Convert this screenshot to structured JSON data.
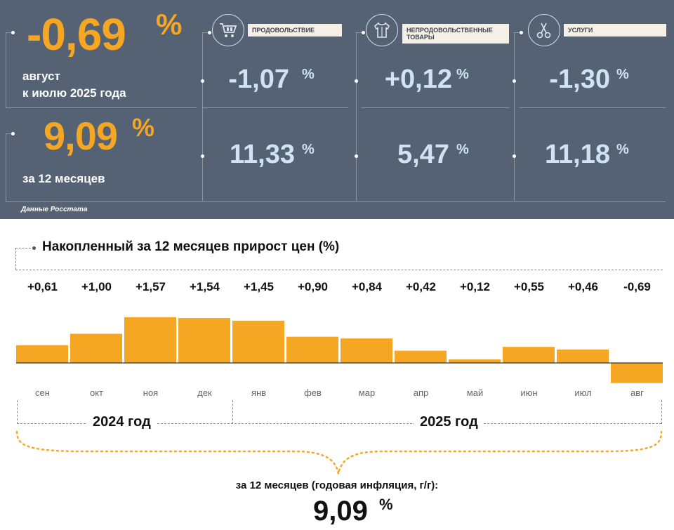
{
  "summary": {
    "monthly": {
      "value": "-0,69",
      "unit": "%",
      "caption_line1": "август",
      "caption_line2": "к июлю 2025 года"
    },
    "annual": {
      "value": "9,09",
      "unit": "%",
      "caption": "за 12 месяцев"
    },
    "source": "Данные Росстата"
  },
  "categories": [
    {
      "label": "ПРОДОВОЛЬСТВИЕ",
      "icon": "shopping-cart-icon",
      "monthly": "-1,07",
      "annual": "11,33",
      "unit": "%"
    },
    {
      "label_line1": "НЕПРОДОВОЛЬСТВЕННЫЕ",
      "label_line2": "ТОВАРЫ",
      "icon": "clothes-icon",
      "monthly": "+0,12",
      "annual": "5,47",
      "unit": "%"
    },
    {
      "label": "УСЛУГИ",
      "icon": "scissors-icon",
      "monthly": "-1,30",
      "annual": "11,18",
      "unit": "%"
    }
  ],
  "colors": {
    "panel": "#556274",
    "accent": "#f5a623",
    "cell_value": "#cfe3f5",
    "bar": "#f5a623"
  },
  "chart_data": {
    "type": "bar",
    "title": "Накопленный за 12 месяцев прирост цен (%)",
    "categories": [
      "сен",
      "окт",
      "ноя",
      "дек",
      "янв",
      "фев",
      "мар",
      "апр",
      "май",
      "июн",
      "июл",
      "авг"
    ],
    "values": [
      0.61,
      1.0,
      1.57,
      1.54,
      1.45,
      0.9,
      0.84,
      0.42,
      0.12,
      0.55,
      0.46,
      -0.69
    ],
    "value_labels": [
      "+0,61",
      "+1,00",
      "+1,57",
      "+1,54",
      "+1,45",
      "+0,90",
      "+0,84",
      "+0,42",
      "+0,12",
      "+0,55",
      "+0,46",
      "-0,69"
    ],
    "year_groups": [
      {
        "label": "2024 год",
        "months": [
          "сен",
          "окт",
          "ноя",
          "дек"
        ]
      },
      {
        "label": "2025 год",
        "months": [
          "янв",
          "фев",
          "мар",
          "апр",
          "май",
          "июн",
          "июл",
          "авг"
        ]
      }
    ],
    "annual_caption": "за 12 месяцев (годовая инфляция, г/г):",
    "annual_value": "9,09",
    "annual_unit": "%",
    "grid": false
  }
}
